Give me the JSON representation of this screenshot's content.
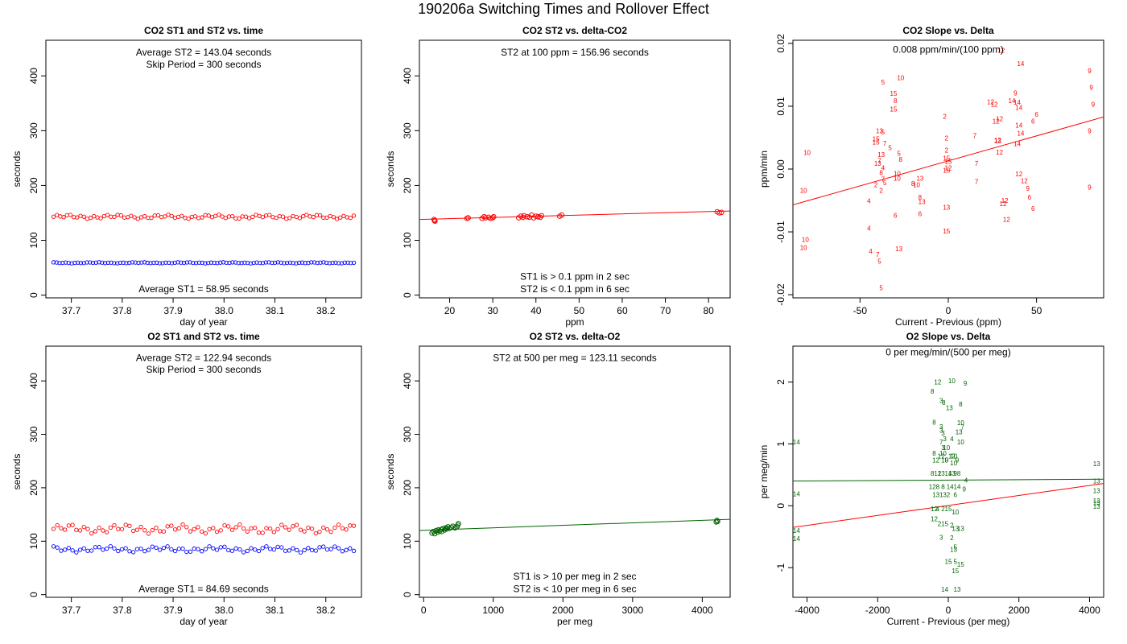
{
  "title": "190206a   Switching Times and Rollover Effect",
  "chart_data": [
    {
      "id": "p1",
      "type": "scatter",
      "title": "CO2 ST1 and ST2 vs. time",
      "xlabel": "day of year",
      "ylabel": "seconds",
      "xlim": [
        37.65,
        38.27
      ],
      "ylim": [
        -5,
        465
      ],
      "xticks": [
        37.7,
        37.8,
        37.9,
        38.0,
        38.1,
        38.2
      ],
      "xtick_labels": [
        "37.7",
        "37.8",
        "37.9",
        "38.0",
        "38.1",
        "38.2"
      ],
      "yticks": [
        0,
        100,
        200,
        300,
        400
      ],
      "ytick_labels": [
        "0",
        "100",
        "200",
        "300",
        "400"
      ],
      "annotations": [
        {
          "text": "Average ST2 =  143.04  seconds",
          "x": 37.96,
          "y": 437
        },
        {
          "text": "Skip Period =  300  seconds",
          "x": 37.96,
          "y": 415
        },
        {
          "text": "Average ST1 =  58.95  seconds",
          "x": 37.96,
          "y": 5
        }
      ],
      "series": [
        {
          "color": "#ff0000",
          "x_start": 37.665,
          "x_end": 38.255,
          "count": 90,
          "base": 143,
          "amp": 4
        },
        {
          "color": "#0000ff",
          "x_start": 37.665,
          "x_end": 38.255,
          "count": 100,
          "base": 59,
          "amp": 1
        }
      ]
    },
    {
      "id": "p2",
      "type": "scatter",
      "title": "CO2 ST2 vs. delta-CO2",
      "xlabel": "ppm",
      "ylabel": "seconds",
      "xlim": [
        13,
        85
      ],
      "ylim": [
        -5,
        465
      ],
      "xticks": [
        20,
        30,
        40,
        50,
        60,
        70,
        80
      ],
      "xtick_labels": [
        "20",
        "30",
        "40",
        "50",
        "60",
        "70",
        "80"
      ],
      "yticks": [
        0,
        100,
        200,
        300,
        400
      ],
      "ytick_labels": [
        "0",
        "100",
        "200",
        "300",
        "400"
      ],
      "annotations": [
        {
          "text": "ST2 at 100 ppm =  156.96  seconds",
          "x": 49,
          "y": 437
        },
        {
          "text": "ST1 is > 0.1 ppm in 2 sec",
          "x": 49,
          "y": 28
        },
        {
          "text": "ST2 is < 0.1 ppm in 6 sec",
          "x": 49,
          "y": 5
        }
      ],
      "fit_line": {
        "color": "#ff0000",
        "x": [
          13,
          85
        ],
        "y": [
          138,
          153.5
        ]
      },
      "points": {
        "color": "#ff0000",
        "x": [
          16.5,
          16.6,
          16.4,
          24,
          24.3,
          27.5,
          28,
          28.3,
          29,
          29.5,
          30,
          30.2,
          36,
          36.5,
          37,
          37.2,
          38,
          38.5,
          39,
          39.5,
          40,
          40.5,
          41,
          41.3,
          45.5,
          46,
          82,
          82.5,
          83
        ],
        "y": [
          136,
          135,
          138,
          140,
          141,
          140,
          143,
          141,
          142,
          140,
          141,
          143,
          141,
          144,
          142,
          145,
          143,
          142,
          146,
          141,
          144,
          143,
          142,
          145,
          144,
          146,
          152,
          150,
          151
        ]
      }
    },
    {
      "id": "p3",
      "type": "scatter",
      "title": "CO2 Slope vs. Delta",
      "xlabel": "Current - Previous (ppm)",
      "ylabel": "ppm/min",
      "xlim": [
        -88,
        88
      ],
      "ylim": [
        -0.0205,
        0.0205
      ],
      "xticks": [
        -50,
        0,
        50
      ],
      "xtick_labels": [
        "-50",
        "0",
        "50"
      ],
      "yticks": [
        -0.02,
        -0.01,
        0.0,
        0.01,
        0.02
      ],
      "ytick_labels": [
        "-0.02",
        "-0.01",
        "0.00",
        "0.01",
        "0.02"
      ],
      "annotations": [
        {
          "text": "0.008  ppm/min/(100 ppm)",
          "x": 0,
          "y": 0.0185
        }
      ],
      "fit_line": {
        "color": "#ff0000",
        "x": [
          -88,
          88
        ],
        "y": [
          -0.0057,
          0.0083
        ]
      },
      "labels": {
        "color": "#ff0000",
        "x": [
          -80,
          -82,
          -81,
          -82,
          -37,
          -27,
          -31,
          -30,
          -31,
          -39,
          -37,
          -36,
          -38,
          -39,
          -40,
          -37,
          -38,
          -37,
          -36,
          -38,
          -41,
          -45,
          -45,
          -44,
          -40,
          -39,
          -38,
          -41,
          -41,
          -33,
          -28,
          -27,
          -29,
          -29,
          -20,
          -16,
          -15,
          -16,
          -30,
          -28,
          -18,
          -16,
          -2,
          -1,
          -1,
          -1,
          0,
          0,
          -1,
          -1,
          -1,
          15,
          16,
          16,
          24,
          26,
          27,
          29,
          28,
          29,
          32,
          31,
          33,
          38,
          36,
          39,
          40,
          40,
          41,
          39,
          40,
          43,
          45,
          46,
          48,
          50,
          48,
          80,
          81,
          82,
          80,
          80,
          41,
          30,
          28
        ],
        "y": [
          0.0025,
          -0.0035,
          -0.0113,
          -0.0126,
          0.0137,
          0.0144,
          0.0119,
          0.0108,
          0.0094,
          0.006,
          0.0058,
          0.004,
          0.0022,
          0.0012,
          0.0008,
          0.0001,
          -0.0007,
          -0.0017,
          -0.0023,
          -0.0035,
          -0.0026,
          -0.0052,
          -0.0095,
          -0.0132,
          -0.0137,
          -0.0148,
          -0.019,
          0.0042,
          0.0047,
          0.0033,
          0.0024,
          0.0014,
          -0.0008,
          -0.0016,
          -0.0024,
          -0.0046,
          -0.0053,
          -0.0072,
          -0.0075,
          -0.0128,
          -0.0026,
          -0.0016,
          0.0083,
          0.0048,
          0.0029,
          0.0016,
          0.0011,
          0.0001,
          -0.0003,
          -0.0062,
          -0.01,
          0.0052,
          0.0008,
          -0.0021,
          0.0106,
          0.0102,
          0.0075,
          0.0079,
          0.0045,
          0.0026,
          -0.0051,
          -0.0056,
          -0.0081,
          0.012,
          0.0108,
          0.0105,
          0.0097,
          0.0069,
          0.0056,
          0.0039,
          -0.0009,
          -0.002,
          -0.0032,
          -0.0046,
          -0.0064,
          0.0086,
          0.0075,
          0.0155,
          0.0129,
          0.0102,
          0.006,
          -0.003,
          0.0167,
          0.0188,
          0.0044
        ],
        "text": [
          "10",
          "10",
          "10",
          "10",
          "5",
          "10",
          "15",
          "8",
          "15",
          "13",
          "5",
          "7",
          "13",
          "7",
          "13",
          "4",
          "8",
          "7",
          "5",
          "2",
          "2",
          "4",
          "4",
          "4",
          "7",
          "5",
          "5",
          "15",
          "15",
          "5",
          "5",
          "8",
          "10",
          "10",
          "8",
          "8",
          "13",
          "6",
          "6",
          "13",
          "10",
          "13",
          "2",
          "2",
          "2",
          "15",
          "15",
          "12",
          "15",
          "13",
          "15",
          "7",
          "7",
          "7",
          "12",
          "12",
          "12",
          "12",
          "12",
          "12",
          "12",
          "12",
          "12",
          "9",
          "14",
          "14",
          "14",
          "14",
          "14",
          "14",
          "12",
          "12",
          "9",
          "6",
          "6",
          "6",
          "6",
          "9",
          "9",
          "9",
          "9",
          "9",
          "14",
          "12",
          "13"
        ]
      }
    },
    {
      "id": "p4",
      "type": "scatter",
      "title": "O2 ST1 and ST2 vs. time",
      "xlabel": "day of year",
      "ylabel": "seconds",
      "xlim": [
        37.65,
        38.27
      ],
      "ylim": [
        -5,
        465
      ],
      "xticks": [
        37.7,
        37.8,
        37.9,
        38.0,
        38.1,
        38.2
      ],
      "xtick_labels": [
        "37.7",
        "37.8",
        "37.9",
        "38.0",
        "38.1",
        "38.2"
      ],
      "yticks": [
        0,
        100,
        200,
        300,
        400
      ],
      "ytick_labels": [
        "0",
        "100",
        "200",
        "300",
        "400"
      ],
      "annotations": [
        {
          "text": "Average ST2 =  122.94  seconds",
          "x": 37.96,
          "y": 437
        },
        {
          "text": "Skip Period =  300  seconds",
          "x": 37.96,
          "y": 415
        },
        {
          "text": "Average ST1 =  84.69  seconds",
          "x": 37.96,
          "y": 5
        }
      ],
      "series": [
        {
          "color": "#ff0000",
          "x_start": 37.665,
          "x_end": 38.255,
          "count": 80,
          "base": 123,
          "amp": 9
        },
        {
          "color": "#0000ff",
          "x_start": 37.665,
          "x_end": 38.255,
          "count": 80,
          "base": 85,
          "amp": 6
        }
      ]
    },
    {
      "id": "p5",
      "type": "scatter",
      "title": "O2 ST2 vs. delta-O2",
      "xlabel": "per meg",
      "ylabel": "seconds",
      "xlim": [
        -60,
        4400
      ],
      "ylim": [
        -5,
        465
      ],
      "xticks": [
        0,
        1000,
        2000,
        3000,
        4000
      ],
      "xtick_labels": [
        "0",
        "1000",
        "2000",
        "3000",
        "4000"
      ],
      "yticks": [
        0,
        100,
        200,
        300,
        400
      ],
      "ytick_labels": [
        "0",
        "100",
        "200",
        "300",
        "400"
      ],
      "annotations": [
        {
          "text": "ST2 at 500 per meg =  123.11  seconds",
          "x": 2170,
          "y": 437
        },
        {
          "text": "ST1 is > 10 per meg in 2 sec",
          "x": 2170,
          "y": 28
        },
        {
          "text": "ST2 is < 10 per meg in 6 sec",
          "x": 2170,
          "y": 5
        }
      ],
      "fit_line": {
        "color": "#006400",
        "x": [
          -60,
          4400
        ],
        "y": [
          120,
          141
        ]
      },
      "points": {
        "color": "#006400",
        "x": [
          120,
          140,
          160,
          180,
          200,
          210,
          230,
          250,
          260,
          280,
          300,
          320,
          330,
          350,
          370,
          400,
          420,
          450,
          480,
          490,
          500,
          4200,
          4210,
          4220
        ],
        "y": [
          115,
          118,
          114,
          120,
          117,
          121,
          119,
          122,
          118,
          124,
          121,
          125,
          123,
          127,
          124,
          126,
          128,
          125,
          127,
          130,
          133,
          136,
          139,
          137
        ]
      }
    },
    {
      "id": "p6",
      "type": "scatter",
      "title": "O2 Slope vs. Delta",
      "xlabel": "Current - Previous (per meg)",
      "ylabel": "per meg/min",
      "xlim": [
        -4400,
        4400
      ],
      "ylim": [
        -1.48,
        2.58
      ],
      "xticks": [
        -4000,
        -2000,
        0,
        2000,
        4000
      ],
      "xtick_labels": [
        "-4000",
        "-2000",
        "0",
        "2000",
        "4000"
      ],
      "yticks": [
        -1,
        0,
        1,
        2
      ],
      "ytick_labels": [
        "-1",
        "0",
        "1",
        "2"
      ],
      "annotations": [
        {
          "text": "0  per meg/min/(500 per meg)",
          "x": 0,
          "y": 2.43
        }
      ],
      "fit_line": {
        "color": "#006400",
        "x": [
          -4400,
          4400
        ],
        "y": [
          0.4,
          0.43
        ]
      },
      "fit_line2": {
        "color": "#ff0000",
        "x": [
          -4400,
          4400
        ],
        "y": [
          -0.35,
          0.36
        ]
      },
      "labels": {
        "color": "#006400",
        "x": [
          -4300,
          -4300,
          -4300,
          -4300,
          -300,
          100,
          480,
          -450,
          -200,
          -130,
          30,
          350,
          -400,
          -200,
          -200,
          -150,
          -100,
          -150,
          -150,
          350,
          400,
          300,
          100,
          350,
          -400,
          -200,
          100,
          150,
          -350,
          -100,
          -50,
          150,
          250,
          -450,
          -300,
          -200,
          0,
          100,
          200,
          300,
          500,
          -450,
          -300,
          -150,
          50,
          250,
          450,
          -350,
          -150,
          0,
          200,
          -400,
          -300,
          -150,
          0,
          200,
          -400,
          -250,
          -100,
          100,
          200,
          350,
          -200,
          100,
          200,
          0,
          200,
          350,
          150,
          200,
          -100,
          250,
          4200,
          4200,
          4200,
          4200,
          4200,
          4200,
          -50,
          -200
        ],
        "y": [
          1.02,
          0.18,
          -0.41,
          -0.54,
          1.99,
          2.01,
          1.97,
          1.84,
          1.69,
          1.66,
          1.57,
          1.63,
          1.34,
          1.27,
          1.21,
          1.16,
          1.07,
          0.93,
          0.84,
          1.33,
          1.26,
          1.18,
          1.07,
          1.02,
          0.84,
          0.79,
          0.79,
          0.79,
          0.73,
          0.73,
          0.73,
          0.68,
          0.73,
          0.51,
          0.51,
          0.51,
          0.51,
          0.51,
          0.51,
          0.51,
          0.4,
          0.3,
          0.3,
          0.3,
          0.3,
          0.3,
          0.26,
          0.17,
          0.17,
          0.17,
          0.17,
          -0.06,
          -0.06,
          -0.06,
          -0.06,
          -0.11,
          -0.22,
          -0.3,
          -0.3,
          -0.33,
          -0.38,
          -0.38,
          -0.52,
          -0.53,
          -0.68,
          -0.91,
          -0.91,
          -0.96,
          -0.72,
          -1.06,
          -1.36,
          -1.36,
          0.67,
          0.39,
          0.23,
          0.07,
          0.04,
          -0.02,
          0.93,
          1.02
        ],
        "text": [
          "14",
          "14",
          "14",
          "14",
          "12",
          "10",
          "9",
          "8",
          "3",
          "8",
          "13",
          "8",
          "8",
          "3",
          "3",
          "3",
          "3",
          "3",
          "10",
          "10",
          "7",
          "13",
          "4",
          "10",
          "8",
          "12",
          "12",
          "10",
          "12",
          "10",
          "5",
          "10",
          "9",
          "8",
          "12",
          "13",
          "14",
          "13",
          "9",
          "8",
          "4",
          "12",
          "8",
          "8",
          "14",
          "14",
          "9",
          "13",
          "13",
          "2",
          "6",
          "12",
          "4",
          "2",
          "15",
          "10",
          "12",
          "2",
          "15",
          "2",
          "13",
          "13",
          "3",
          "2",
          "5",
          "15",
          "5",
          "15",
          "13",
          "15",
          "14",
          "13",
          "13",
          "13",
          "13",
          "13",
          "13",
          "13",
          "10",
          "7"
        ]
      }
    }
  ]
}
